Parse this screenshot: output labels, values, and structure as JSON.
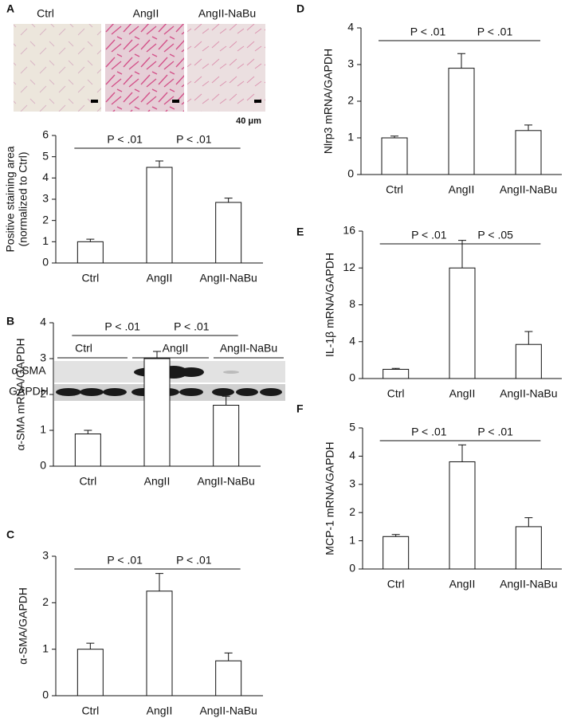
{
  "micrographs": {
    "labels": [
      "Ctrl",
      "AngII",
      "AngII-NaBu"
    ],
    "scale": "40 μm"
  },
  "blot": {
    "groups": [
      "Ctrl",
      "AngII",
      "AngII-NaBu"
    ],
    "rows": [
      "α-SMA",
      "GAPDH"
    ]
  },
  "chart_data": [
    {
      "type": "bar",
      "panel": "A",
      "ylabel": [
        "Positive staining area",
        "(normalized to Ctrl)"
      ],
      "categories": [
        "Ctrl",
        "AngII",
        "AngII-NaBu"
      ],
      "values": [
        1.0,
        4.5,
        2.85
      ],
      "errors": [
        0.12,
        0.3,
        0.2
      ],
      "ylim": [
        0,
        6
      ],
      "yticks": [
        0,
        1,
        2,
        3,
        4,
        5,
        6
      ],
      "color": "#ffffff",
      "annotations": [
        "P < .01",
        "P < .01"
      ]
    },
    {
      "type": "bar",
      "panel": "B",
      "ylabel": [
        "α-SMA mRNA/GAPDH"
      ],
      "categories": [
        "Ctrl",
        "AngII",
        "AngII-NaBu"
      ],
      "values": [
        0.9,
        3.0,
        1.7
      ],
      "errors": [
        0.1,
        0.2,
        0.25
      ],
      "ylim": [
        0,
        4
      ],
      "yticks": [
        0,
        1,
        2,
        3,
        4
      ],
      "color": "#ffffff",
      "annotations": [
        "P < .01",
        "P < .01"
      ]
    },
    {
      "type": "bar",
      "panel": "C",
      "ylabel": [
        "α-SMA/GAPDH"
      ],
      "categories": [
        "Ctrl",
        "AngII",
        "AngII-NaBu"
      ],
      "values": [
        1.0,
        2.25,
        0.75
      ],
      "errors": [
        0.13,
        0.38,
        0.17
      ],
      "ylim": [
        0,
        3
      ],
      "yticks": [
        0,
        1,
        2,
        3
      ],
      "color": "#ffffff",
      "annotations": [
        "P < .01",
        "P < .01"
      ]
    },
    {
      "type": "bar",
      "panel": "D",
      "ylabel": [
        "Nlrp3 mRNA/GAPDH"
      ],
      "categories": [
        "Ctrl",
        "AngII",
        "AngII-NaBu"
      ],
      "values": [
        1.0,
        2.9,
        1.2
      ],
      "errors": [
        0.05,
        0.4,
        0.15
      ],
      "ylim": [
        0,
        4
      ],
      "yticks": [
        0,
        1,
        2,
        3,
        4
      ],
      "color": "#ffffff",
      "annotations": [
        "P < .01",
        "P < .01"
      ]
    },
    {
      "type": "bar",
      "panel": "E",
      "ylabel": [
        "IL-1β mRNA/GAPDH"
      ],
      "categories": [
        "Ctrl",
        "AngII",
        "AngII-NaBu"
      ],
      "values": [
        1.0,
        12,
        3.7
      ],
      "errors": [
        0.1,
        3.0,
        1.4
      ],
      "ylim": [
        0,
        16
      ],
      "yticks": [
        0,
        4,
        8,
        12,
        16
      ],
      "color": "#ffffff",
      "annotations": [
        "P < .01",
        "P < .05"
      ]
    },
    {
      "type": "bar",
      "panel": "F",
      "ylabel": [
        "MCP-1 mRNA/GAPDH"
      ],
      "categories": [
        "Ctrl",
        "AngII",
        "AngII-NaBu"
      ],
      "values": [
        1.15,
        3.8,
        1.5
      ],
      "errors": [
        0.07,
        0.6,
        0.32
      ],
      "ylim": [
        0,
        5
      ],
      "yticks": [
        0,
        1,
        2,
        3,
        4,
        5
      ],
      "color": "#ffffff",
      "annotations": [
        "P < .01",
        "P < .01"
      ]
    }
  ]
}
